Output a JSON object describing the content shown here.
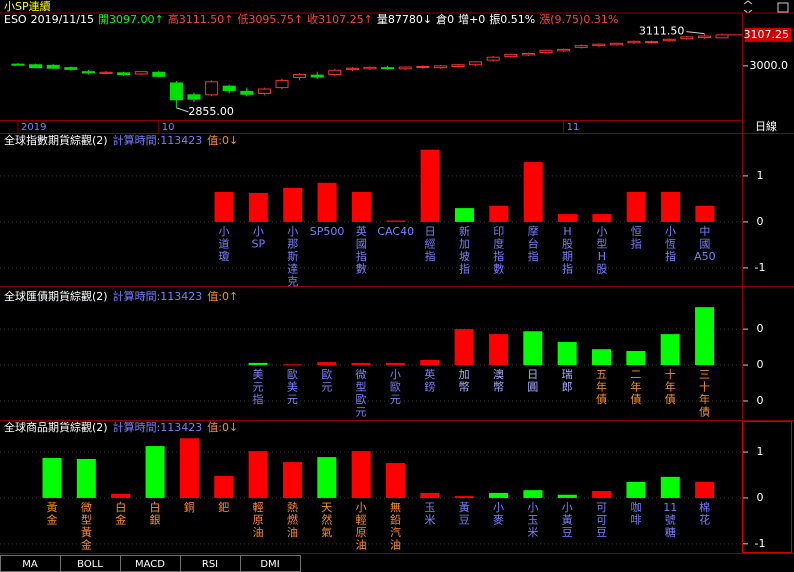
{
  "chart_data": [
    {
      "type": "candlestick",
      "title": "小SP連續",
      "symbol": "ESO",
      "date": "2019/11/15",
      "quote_fields": [
        "開3097.00↑",
        "高3111.50↑",
        "低3095.75↑",
        "收3107.25↑",
        "量87780↓",
        "倉0",
        "增+0",
        "振0.51%",
        "漲(9.75)0.31%"
      ],
      "quote_colors": [
        "#00ff00",
        "#ff4040",
        "#ff4040",
        "#ff4040",
        "#ffffff",
        "#ffffff",
        "#ffffff",
        "#ffffff",
        "#ff4040"
      ],
      "categories": [
        "2019",
        null,
        null,
        null,
        null,
        null,
        null,
        null,
        "10",
        null,
        null,
        null,
        null,
        null,
        null,
        null,
        null,
        null,
        null,
        null,
        null,
        null,
        null,
        null,
        null,
        null,
        null,
        null,
        null,
        null,
        null,
        "11",
        null,
        null,
        null,
        null,
        null,
        null,
        null,
        null,
        null
      ],
      "open": [
        3006,
        3004,
        3002,
        2994,
        2980,
        2974,
        2976,
        2972,
        2978,
        2941,
        2900,
        2900,
        2930,
        2912,
        2905,
        2925,
        2960,
        2968,
        2970,
        2988,
        2990,
        2994,
        2990,
        2995,
        2994,
        2998,
        3004,
        3020,
        3032,
        3038,
        3046,
        3052,
        3064,
        3070,
        3073,
        3080,
        3082,
        3087,
        3094,
        3098,
        3097
      ],
      "high": [
        3010,
        3008,
        3006,
        2998,
        2986,
        2982,
        2980,
        2982,
        2983,
        2948,
        2908,
        2950,
        2935,
        2925,
        2925,
        2955,
        2975,
        2980,
        2990,
        2996,
        2998,
        3000,
        2998,
        3002,
        3003,
        3006,
        3016,
        3034,
        3042,
        3046,
        3056,
        3060,
        3074,
        3078,
        3080,
        3088,
        3088,
        3095,
        3104,
        3111.5,
        3111.5
      ],
      "low": [
        3001,
        2992,
        2990,
        2984,
        2970,
        2970,
        2966,
        2968,
        2960,
        2855,
        2875,
        2895,
        2905,
        2895,
        2898,
        2920,
        2950,
        2955,
        2965,
        2982,
        2986,
        2988,
        2986,
        2990,
        2990,
        2994,
        3000,
        3016,
        3028,
        3034,
        3042,
        3048,
        3060,
        3066,
        3070,
        3076,
        3078,
        3083,
        3090,
        3094,
        3095.75
      ],
      "close": [
        3004,
        2994,
        2992,
        2988,
        2976,
        2978,
        2970,
        2980,
        2964,
        2883,
        2885,
        2945,
        2915,
        2902,
        2920,
        2950,
        2970,
        2962,
        2985,
        2992,
        2995,
        2991,
        2996,
        2998,
        3000,
        3004,
        3014,
        3030,
        3040,
        3043,
        3054,
        3057,
        3070,
        3075,
        3078,
        3085,
        3084,
        3092,
        3100,
        3103,
        3107.25
      ],
      "up_color": "#ff3030",
      "down_color": "#00e000",
      "ylim": [
        2813,
        3131
      ],
      "yticks": [
        {
          "value": 3000,
          "label": "3000.0"
        }
      ],
      "last_price": {
        "value": 3107.25,
        "label": "3107.25"
      },
      "annotations": [
        {
          "index": 39,
          "value": 3111.5,
          "label": "3111.50"
        },
        {
          "index": 9,
          "value": 2855,
          "label": "2855.00"
        }
      ],
      "period": "日線"
    },
    {
      "type": "bar",
      "title": "全球指數期貨綜觀(2)",
      "calc_time": "計算時間:113423",
      "value_note": "值:0↓",
      "categories": [
        "小道瓊",
        "小SP",
        "小那斯達克",
        "SP500",
        "英國指數",
        "CAC40",
        "日經指",
        "新加坡指",
        "印度指數",
        "摩台指",
        "H股期指",
        "小型H股",
        "恒指",
        "小恆指",
        "中國A50"
      ],
      "values": [
        0.65,
        0.63,
        0.74,
        0.85,
        0.65,
        0.03,
        1.57,
        0.3,
        0.35,
        1.3,
        0.17,
        0.17,
        0.65,
        0.65,
        0.35
      ],
      "colors": [
        "#ff0000",
        "#ff0000",
        "#ff0000",
        "#ff0000",
        "#ff0000",
        "#ff0000",
        "#ff0000",
        "#00ff00",
        "#ff0000",
        "#ff0000",
        "#ff0000",
        "#ff0000",
        "#ff0000",
        "#ff0000",
        "#ff0000"
      ],
      "label_colors": [
        "#7b7bff",
        "#7b7bff",
        "#7b7bff",
        "#7b7bff",
        "#7b7bff",
        "#7b7bff",
        "#7b7bff",
        "#7b7bff",
        "#7b7bff",
        "#7b7bff",
        "#7b7bff",
        "#7b7bff",
        "#7b7bff",
        "#7b7bff",
        "#7b7bff"
      ],
      "ylim": [
        -1.35,
        1.65
      ],
      "yticks": [
        1,
        0,
        -1
      ]
    },
    {
      "type": "bar",
      "title": "全球匯債期貨綜觀(2)",
      "calc_time": "計算時間:113423",
      "value_note": "值:0↑",
      "categories": [
        "美元指",
        "歐美元",
        "歐元",
        "微型歐元",
        "小歐元",
        "英鎊",
        "加幣",
        "澳幣",
        "日圓",
        "瑞郎",
        "五年債",
        "二年債",
        "十年債",
        "三十年債"
      ],
      "values": [
        0.06,
        0.02,
        0.08,
        0.06,
        0.06,
        0.14,
        1.0,
        0.86,
        0.94,
        0.64,
        0.44,
        0.39,
        0.86,
        1.61
      ],
      "colors": [
        "#00ff00",
        "#ff0000",
        "#ff0000",
        "#ff0000",
        "#ff0000",
        "#ff0000",
        "#ff0000",
        "#ff0000",
        "#00ff00",
        "#00ff00",
        "#00ff00",
        "#00ff00",
        "#00ff00",
        "#00ff00"
      ],
      "label_colors": [
        "#7b7bff",
        "#7b7bff",
        "#7b7bff",
        "#7b7bff",
        "#7b7bff",
        "#7b7bff",
        "#a9a9ff",
        "#a9a9ff",
        "#a9a9ff",
        "#a9a9ff",
        "#ff8c1a",
        "#ff8c1a",
        "#ff8c1a",
        "#ff8c1a"
      ],
      "ylim": [
        -1.53,
        1.81
      ],
      "yticks": [
        {
          "value": 1,
          "label": "0"
        },
        {
          "value": 0,
          "label": "0"
        },
        {
          "value": -1,
          "label": "0"
        }
      ]
    },
    {
      "type": "bar",
      "title": "全球商品期貨綜觀(2)",
      "calc_time": "計算時間:113423",
      "value_note": "值:0↓",
      "categories": [
        "黃金",
        "微型黃金",
        "白金",
        "白銀",
        "銅",
        "鈀",
        "輕原油",
        "熱燃油",
        "天然氣",
        "小輕原油",
        "無鉛汽油",
        "玉米",
        "黃豆",
        "小麥",
        "小玉米",
        "小黃豆",
        "可可豆",
        "咖啡",
        "11號糖",
        "棉花"
      ],
      "values": [
        0.87,
        0.85,
        0.09,
        1.13,
        1.3,
        0.48,
        1.02,
        0.78,
        0.89,
        1.02,
        0.76,
        0.11,
        0.04,
        0.11,
        0.17,
        0.07,
        0.15,
        0.35,
        0.46,
        0.35
      ],
      "colors": [
        "#00ff00",
        "#00ff00",
        "#ff0000",
        "#00ff00",
        "#ff0000",
        "#ff0000",
        "#ff0000",
        "#ff0000",
        "#00ff00",
        "#ff0000",
        "#ff0000",
        "#ff0000",
        "#ff0000",
        "#00ff00",
        "#00ff00",
        "#00ff00",
        "#ff0000",
        "#00ff00",
        "#00ff00",
        "#ff0000"
      ],
      "label_colors": [
        "#ff8c1a",
        "#ff8c1a",
        "#ff8c1a",
        "#ff8c1a",
        "#ff8c1a",
        "#ff8c1a",
        "#ff8c1a",
        "#ff8c1a",
        "#ff8c1a",
        "#ff8c1a",
        "#ff8c1a",
        "#7b7bff",
        "#7b7bff",
        "#7b7bff",
        "#7b7bff",
        "#7b7bff",
        "#7b7bff",
        "#7b7bff",
        "#7b7bff",
        "#7b7bff"
      ],
      "ylim": [
        -1.2,
        1.35
      ],
      "yticks": [
        1,
        0,
        -1
      ]
    }
  ],
  "tabs": [
    "MA",
    "BOLL",
    "MACD",
    "RSI",
    "DMI"
  ]
}
